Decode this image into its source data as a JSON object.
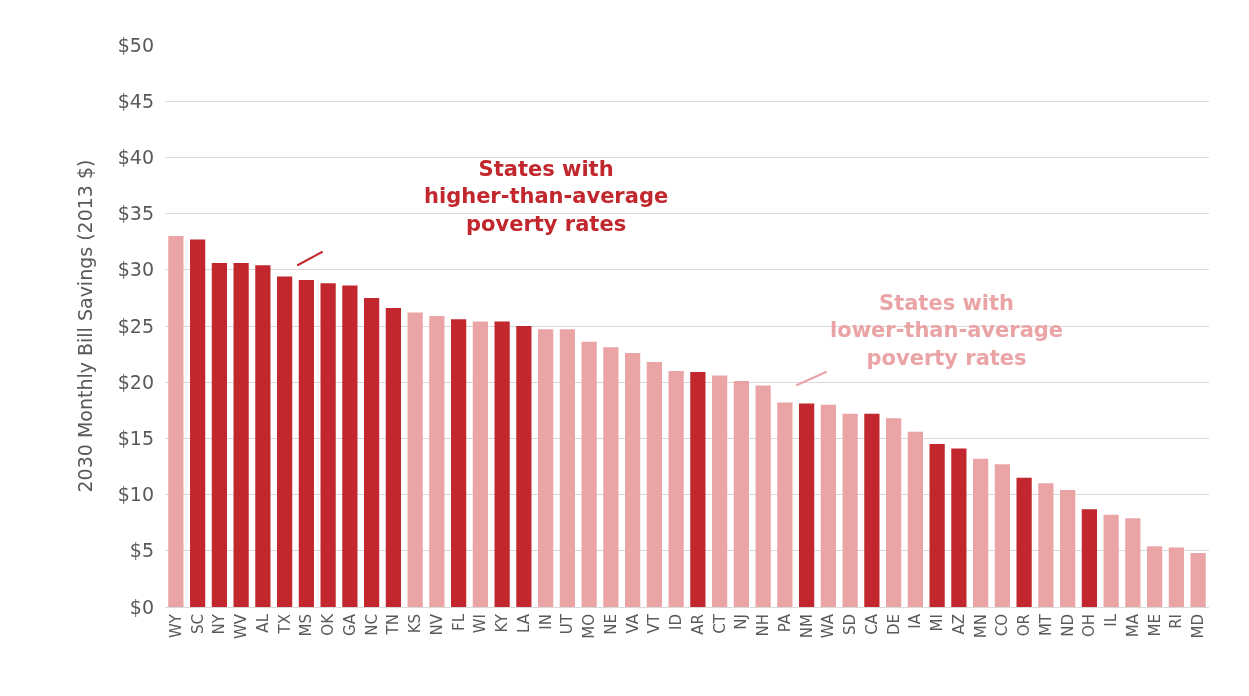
{
  "chart_data": {
    "type": "bar",
    "ylabel": "2030 Monthly Bill Savings (2013 $)",
    "categories": [
      "WY",
      "SC",
      "NY",
      "WV",
      "AL",
      "TX",
      "MS",
      "OK",
      "GA",
      "NC",
      "TN",
      "KS",
      "NV",
      "FL",
      "WI",
      "KY",
      "LA",
      "IN",
      "UT",
      "MO",
      "NE",
      "VA",
      "VT",
      "ID",
      "AR",
      "CT",
      "NJ",
      "NH",
      "PA",
      "NM",
      "WA",
      "SD",
      "CA",
      "DE",
      "IA",
      "MI",
      "AZ",
      "MN",
      "CO",
      "OR",
      "MT",
      "ND",
      "OH",
      "IL",
      "MA",
      "ME",
      "RI",
      "MD"
    ],
    "values": [
      33.0,
      32.7,
      30.6,
      30.6,
      30.4,
      29.4,
      29.1,
      28.8,
      28.6,
      27.5,
      26.6,
      26.2,
      25.9,
      25.6,
      25.4,
      25.4,
      25.0,
      24.7,
      24.7,
      23.6,
      23.1,
      22.6,
      21.8,
      21.0,
      20.9,
      20.6,
      20.1,
      19.7,
      18.2,
      18.1,
      18.0,
      17.2,
      17.2,
      16.8,
      15.6,
      14.5,
      14.1,
      13.2,
      12.7,
      11.5,
      11.0,
      10.4,
      8.7,
      8.2,
      7.9,
      5.4,
      5.3,
      4.8
    ],
    "colors": [
      "#eaa4a6",
      "#c1272d",
      "#c1272d",
      "#c1272d",
      "#c1272d",
      "#c1272d",
      "#c1272d",
      "#c1272d",
      "#c1272d",
      "#c1272d",
      "#c1272d",
      "#eaa4a6",
      "#eaa4a6",
      "#c1272d",
      "#eaa4a6",
      "#c1272d",
      "#c1272d",
      "#eaa4a6",
      "#eaa4a6",
      "#eaa4a6",
      "#eaa4a6",
      "#eaa4a6",
      "#eaa4a6",
      "#eaa4a6",
      "#c1272d",
      "#eaa4a6",
      "#eaa4a6",
      "#eaa4a6",
      "#eaa4a6",
      "#c1272d",
      "#eaa4a6",
      "#eaa4a6",
      "#c1272d",
      "#eaa4a6",
      "#eaa4a6",
      "#c1272d",
      "#c1272d",
      "#eaa4a6",
      "#eaa4a6",
      "#c1272d",
      "#eaa4a6",
      "#eaa4a6",
      "#c1272d",
      "#eaa4a6",
      "#eaa4a6",
      "#eaa4a6",
      "#eaa4a6",
      "#eaa4a6"
    ],
    "ylim": [
      0,
      50
    ],
    "yticks": [
      {
        "value": 0,
        "label": "$0"
      },
      {
        "value": 5,
        "label": "$5"
      },
      {
        "value": 10,
        "label": "$10"
      },
      {
        "value": 15,
        "label": "$15"
      },
      {
        "value": 20,
        "label": "$20"
      },
      {
        "value": 25,
        "label": "$25"
      },
      {
        "value": 30,
        "label": "$30"
      },
      {
        "value": 35,
        "label": "$35"
      },
      {
        "value": 40,
        "label": "$40"
      },
      {
        "value": 45,
        "label": "$45"
      },
      {
        "value": 50,
        "label": "$50"
      }
    ],
    "grid": "y",
    "annotations": [
      "States with\nhigher-than-average\npoverty rates",
      "States with\nlower-than-average\npoverty rates"
    ]
  }
}
